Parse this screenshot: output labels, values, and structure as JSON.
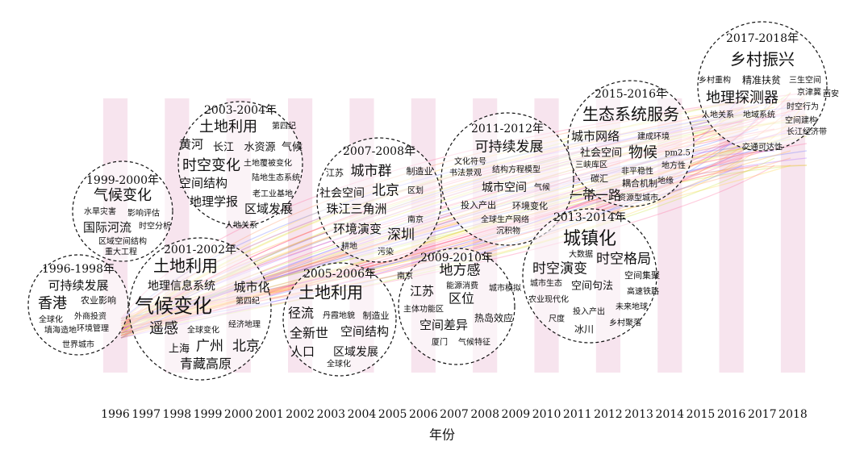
{
  "x_axis": {
    "label": "年份",
    "years": [
      "1996",
      "1997",
      "1998",
      "1999",
      "2000",
      "2001",
      "2002",
      "2003",
      "2004",
      "2005",
      "2006",
      "2007",
      "2008",
      "2009",
      "2010",
      "2011",
      "2012",
      "2013",
      "2014",
      "2015",
      "2016",
      "2017",
      "2018"
    ]
  },
  "periods": [
    {
      "title": "1996-1998年",
      "keywords": [
        "可持续发展",
        "香港",
        "农业影响",
        "外商投资",
        "全球化",
        "填海造地",
        "环境管理",
        "世界城市"
      ]
    },
    {
      "title": "1999-2000年",
      "keywords": [
        "气候变化",
        "水旱灾害",
        "影响评估",
        "国际河流",
        "时空分析",
        "区域空间结构",
        "重大工程"
      ]
    },
    {
      "title": "2003-2004年",
      "keywords": [
        "土地利用",
        "第四纪",
        "黄河",
        "长江",
        "水资源",
        "气候",
        "时空变化",
        "土地覆被变化",
        "空间结构",
        "陆地生态系统",
        "地理学报",
        "区域发展",
        "老工业基地",
        "人地关系"
      ]
    },
    {
      "title": "2001-2002年",
      "keywords": [
        "土地利用",
        "地理信息系统",
        "城市化",
        "气候变化",
        "第四纪",
        "遥感",
        "全球变化",
        "经济地理",
        "上海",
        "广州",
        "北京",
        "青藏高原"
      ]
    },
    {
      "title": "2005-2006年",
      "keywords": [
        "土地利用",
        "径流",
        "丹霞地貌",
        "制造业",
        "全新世",
        "空间结构",
        "人口",
        "区域发展",
        "全球化"
      ]
    },
    {
      "title": "2007-2008年",
      "keywords": [
        "江苏",
        "城市群",
        "制造业",
        "社会空间",
        "北京",
        "区划",
        "珠江三角洲",
        "环境演变",
        "深圳",
        "南京",
        "耕地",
        "污染"
      ]
    },
    {
      "title": "2009-2010年",
      "keywords": [
        "地方感",
        "南京",
        "能源消费",
        "江苏",
        "城市模拟",
        "区位",
        "主体功能区",
        "热岛效应",
        "空间差异",
        "厦门",
        "气候特征"
      ]
    },
    {
      "title": "2011-2012年",
      "keywords": [
        "可持续发展",
        "文化符号",
        "书法景观",
        "结构方程模型",
        "城市空间",
        "气候",
        "投入产出",
        "环境变化",
        "全球生产网络",
        "沉积物"
      ]
    },
    {
      "title": "2013-2014年",
      "keywords": [
        "城镇化",
        "大数据",
        "时空演变",
        "时空格局",
        "空间集聚",
        "城市生态",
        "空间句法",
        "高速铁路",
        "农业现代化",
        "未来地球",
        "投入产出",
        "尺度",
        "乡村聚落",
        "冰川"
      ]
    },
    {
      "title": "2015-2016年",
      "keywords": [
        "生态系统服务",
        "城市网络",
        "建成环境",
        "社会空间",
        "物候",
        "pm2.5",
        "三峡库区",
        "非平稳性",
        "地方性",
        "碳汇",
        "耦合机制",
        "地缘",
        "一带一路",
        "资源型城市"
      ]
    },
    {
      "title": "2017-2018年",
      "keywords": [
        "乡村振兴",
        "乡村重构",
        "精准扶贫",
        "三生空间",
        "京津冀",
        "西安",
        "地理探测器",
        "时空行为",
        "人地关系",
        "地域系统",
        "空间建构",
        "长江经济带",
        "交通可达性"
      ]
    }
  ]
}
